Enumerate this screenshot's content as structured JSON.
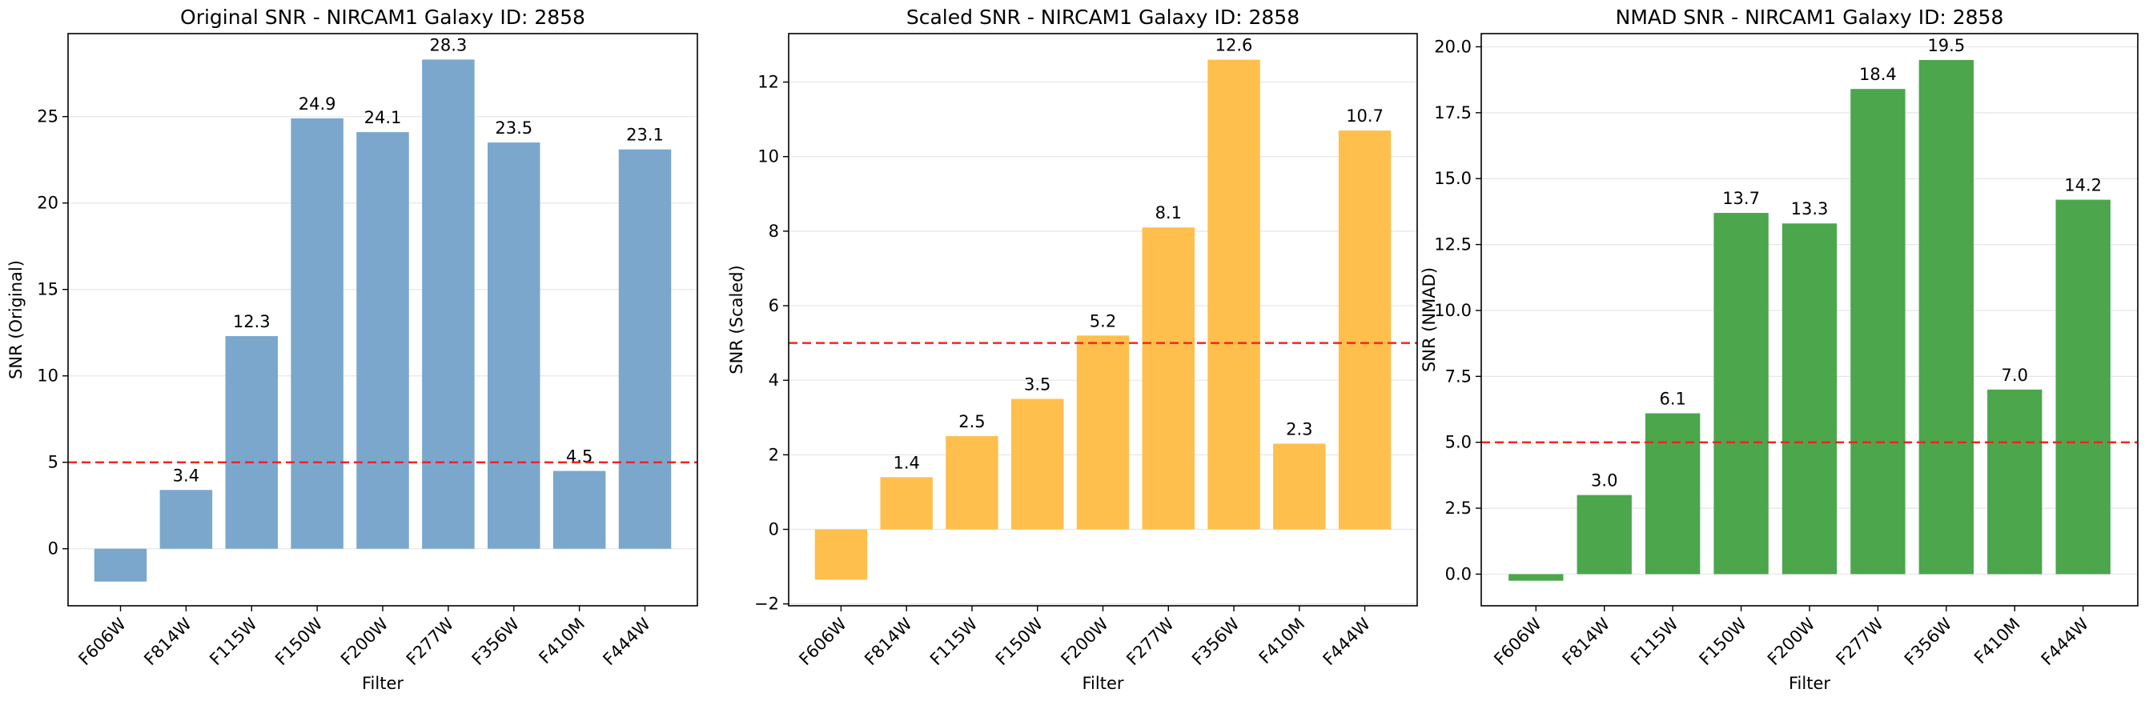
{
  "chart_data": [
    {
      "type": "bar",
      "title": "Original SNR - NIRCAM1 Galaxy ID: 2858",
      "xlabel": "Filter",
      "ylabel": "SNR (Original)",
      "categories": [
        "F606W",
        "F814W",
        "F115W",
        "F150W",
        "F200W",
        "F277W",
        "F356W",
        "F410M",
        "F444W"
      ],
      "values": [
        -1.9,
        3.4,
        12.3,
        24.9,
        24.1,
        28.3,
        23.5,
        4.5,
        23.1
      ],
      "data_labels": [
        "",
        "3.4",
        "12.3",
        "24.9",
        "24.1",
        "28.3",
        "23.5",
        "4.5",
        "23.1"
      ],
      "ylim": [
        -3.3,
        29.8
      ],
      "yticks": [
        0,
        5,
        10,
        15,
        20,
        25
      ],
      "ytick_labels": [
        "0",
        "5",
        "10",
        "15",
        "20",
        "25"
      ],
      "threshold": 5,
      "bar_color": "#7ba7cc",
      "threshold_color": "#ff2020",
      "grid": true
    },
    {
      "type": "bar",
      "title": "Scaled SNR - NIRCAM1 Galaxy ID: 2858",
      "xlabel": "Filter",
      "ylabel": "SNR (Scaled)",
      "categories": [
        "F606W",
        "F814W",
        "F115W",
        "F150W",
        "F200W",
        "F277W",
        "F356W",
        "F410M",
        "F444W"
      ],
      "values": [
        -1.35,
        1.4,
        2.5,
        3.5,
        5.2,
        8.1,
        12.6,
        2.3,
        10.7
      ],
      "data_labels": [
        "",
        "1.4",
        "2.5",
        "3.5",
        "5.2",
        "8.1",
        "12.6",
        "2.3",
        "10.7"
      ],
      "ylim": [
        -2.05,
        13.3
      ],
      "yticks": [
        -2,
        0,
        2,
        4,
        6,
        8,
        10,
        12
      ],
      "ytick_labels": [
        "−2",
        "0",
        "2",
        "4",
        "6",
        "8",
        "10",
        "12"
      ],
      "threshold": 5,
      "bar_color": "#ffbf4d",
      "threshold_color": "#ff2020",
      "grid": true
    },
    {
      "type": "bar",
      "title": "NMAD SNR - NIRCAM1 Galaxy ID: 2858",
      "xlabel": "Filter",
      "ylabel": "SNR (NMAD)",
      "categories": [
        "F606W",
        "F814W",
        "F115W",
        "F150W",
        "F200W",
        "F277W",
        "F356W",
        "F410M",
        "F444W"
      ],
      "values": [
        -0.25,
        3.0,
        6.1,
        13.7,
        13.3,
        18.4,
        19.5,
        7.0,
        14.2
      ],
      "data_labels": [
        "",
        "3.0",
        "6.1",
        "13.7",
        "13.3",
        "18.4",
        "19.5",
        "7.0",
        "14.2"
      ],
      "ylim": [
        -1.2,
        20.5
      ],
      "yticks": [
        0,
        2.5,
        5,
        7.5,
        10,
        12.5,
        15,
        17.5,
        20
      ],
      "ytick_labels": [
        "0.0",
        "2.5",
        "5.0",
        "7.5",
        "10.0",
        "12.5",
        "15.0",
        "17.5",
        "20.0"
      ],
      "threshold": 5,
      "bar_color": "#4ca64c",
      "threshold_color": "#ff2020",
      "grid": true
    }
  ]
}
